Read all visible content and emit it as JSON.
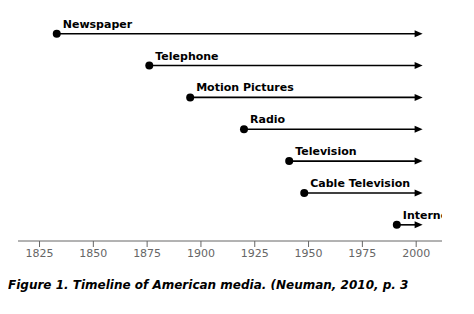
{
  "chart_data": {
    "type": "timeline",
    "title": "Figure 1. Timeline of American media. (Neuman, 2010, p. 3",
    "categories": [
      "Newspaper",
      "Telephone",
      "Motion Pictures",
      "Radio",
      "Television",
      "Cable Television",
      "Internet"
    ],
    "values": [
      1833,
      1876,
      1895,
      1920,
      1941,
      1948,
      1991
    ],
    "end": 2003,
    "xlim": [
      1815,
      2012
    ],
    "xticks": [
      1825,
      1850,
      1875,
      1900,
      1925,
      1950,
      1975,
      2000
    ],
    "color": "#000000",
    "grid": false,
    "tick_labels": "x"
  }
}
